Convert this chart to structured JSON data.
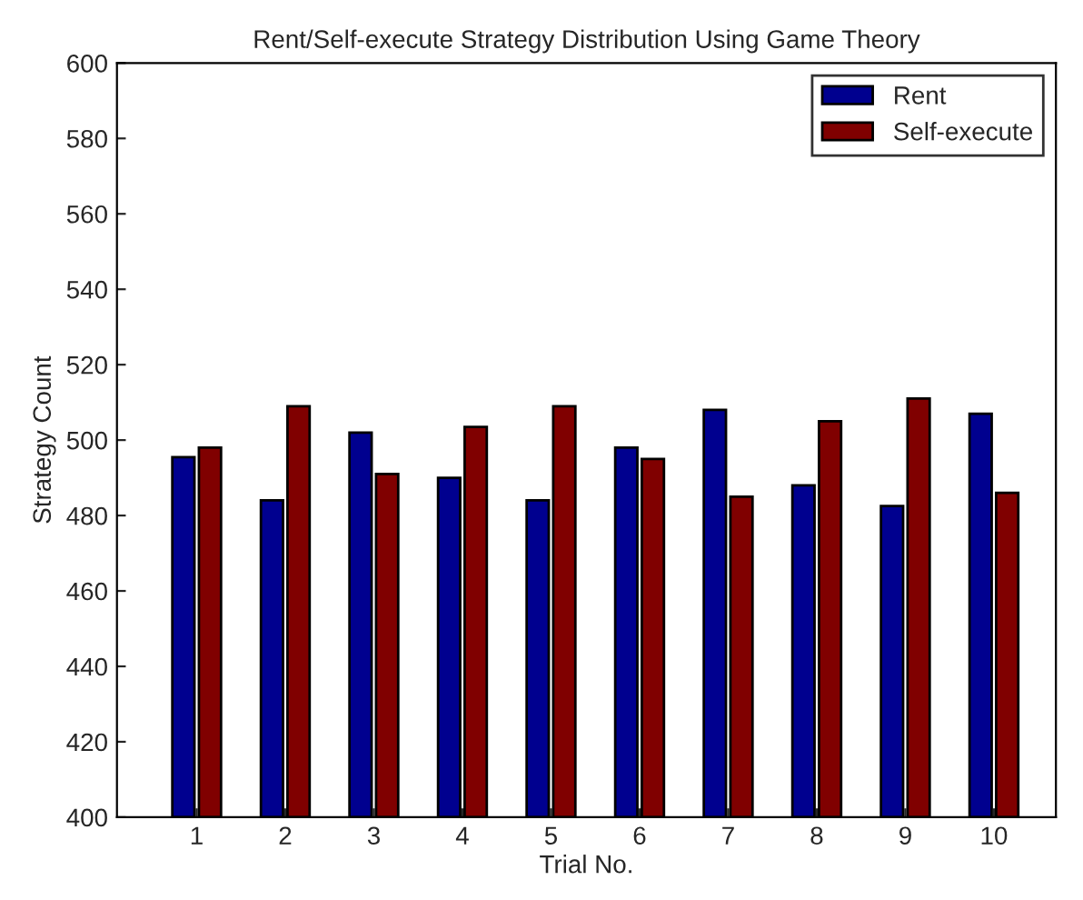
{
  "chart_data": {
    "type": "bar",
    "title": "Rent/Self-execute Strategy Distribution Using Game Theory",
    "xlabel": "Trial No.",
    "ylabel": "Strategy Count",
    "categories": [
      "1",
      "2",
      "3",
      "4",
      "5",
      "6",
      "7",
      "8",
      "9",
      "10"
    ],
    "series": [
      {
        "name": "Rent",
        "color": "#00008f",
        "values": [
          495.5,
          484,
          502,
          490,
          484,
          498,
          508,
          488,
          482.5,
          507
        ]
      },
      {
        "name": "Self-execute",
        "color": "#800000",
        "values": [
          498,
          509,
          491,
          503.5,
          509,
          495,
          485,
          505,
          511,
          486
        ]
      }
    ],
    "ylim": [
      400,
      600
    ],
    "yticks": [
      400,
      420,
      440,
      460,
      480,
      500,
      520,
      540,
      560,
      580,
      600
    ],
    "grid": false,
    "legend": "top right"
  }
}
